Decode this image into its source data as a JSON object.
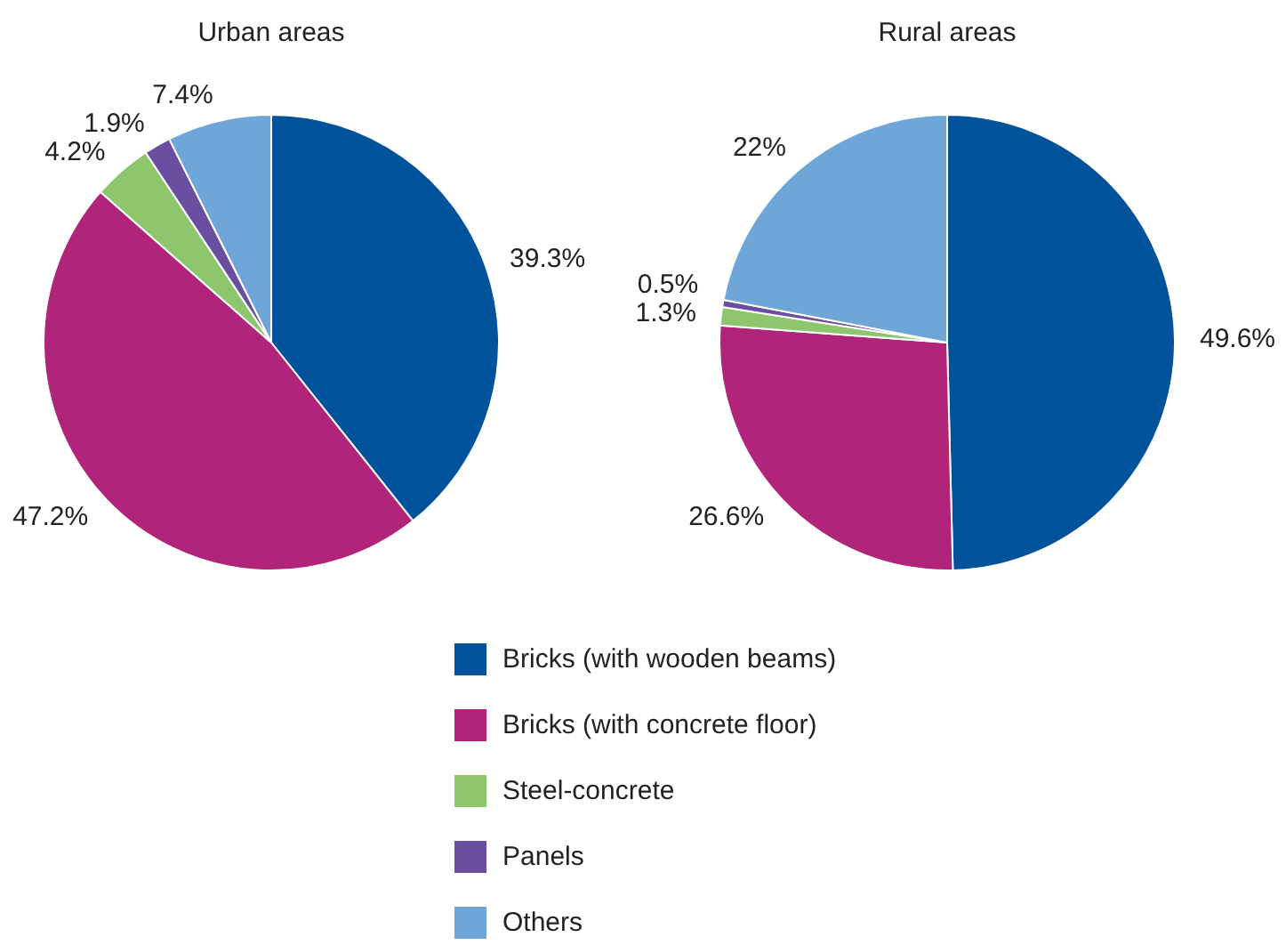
{
  "chart_data": [
    {
      "type": "pie",
      "title": "Urban areas",
      "categories": [
        "Bricks (with wooden beams)",
        "Bricks (with concrete floor)",
        "Steel-concrete",
        "Panels",
        "Others"
      ],
      "values": [
        39.3,
        47.2,
        4.2,
        1.9,
        7.4
      ],
      "value_labels": [
        "39.3%",
        "47.2%",
        "4.2%",
        "1.9%",
        "7.4%"
      ],
      "colors": [
        "#00529b",
        "#b0247a",
        "#8dc66d",
        "#6a4fa0",
        "#6fa6d8"
      ],
      "legend": "bottom"
    },
    {
      "type": "pie",
      "title": "Rural areas",
      "categories": [
        null,
        null,
        null,
        null,
        null
      ],
      "values": [
        49.6,
        26.6,
        1.3,
        0.5,
        22
      ],
      "value_labels": [
        "49.6%",
        "26.6%",
        "1.3%",
        "0.5%",
        "22%"
      ],
      "colors": [
        "#00529b",
        "#b0247a",
        "#8dc66d",
        "#6a4fa0",
        "#6fa6d8"
      ]
    }
  ]
}
